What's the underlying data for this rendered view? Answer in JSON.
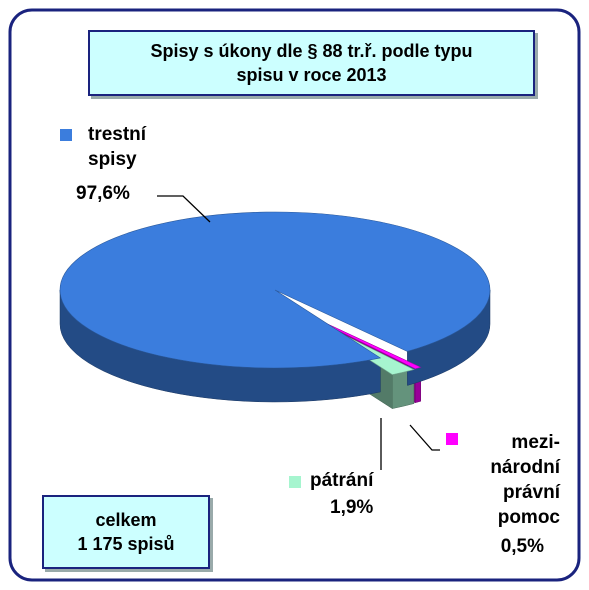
{
  "chart_data": {
    "type": "pie",
    "title": "Spisy s úkony dle § 88 tr.ř. podle typu\nspisu v roce 2013",
    "categories": [
      "mezi-\nnárodní\nprávní\npomoc",
      "pátrání",
      "trestní\nspisy"
    ],
    "values": [
      0.5,
      1.9,
      97.6
    ],
    "value_labels": [
      "0,5%",
      "1,9%",
      "97,6%"
    ],
    "colors": [
      "#ff00ff",
      "#a6f5cf",
      "#3b7ddd"
    ],
    "annotation": "celkem\n1 175 spisů"
  }
}
